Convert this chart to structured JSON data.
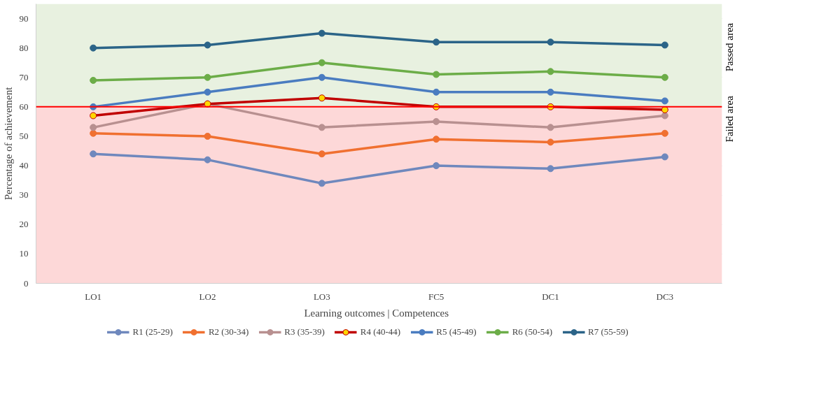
{
  "chart_data": {
    "type": "line",
    "xlabel": "Learning outcomes  |  Competences",
    "ylabel": "Percentage of achievement",
    "categories": [
      "LO1",
      "LO2",
      "LO3",
      "FC5",
      "DC1",
      "DC3"
    ],
    "series": [
      {
        "name": "R1 (25-29)",
        "color": "#6f88bd",
        "values": [
          44,
          42,
          34,
          40,
          39,
          43
        ]
      },
      {
        "name": "R2 (30-34)",
        "color": "#f07030",
        "values": [
          51,
          50,
          44,
          49,
          48,
          51
        ]
      },
      {
        "name": "R3 (35-39)",
        "color": "#b89090",
        "values": [
          53,
          61,
          53,
          55,
          53,
          57
        ]
      },
      {
        "name": "R4 (40-44)",
        "color": "#c00000",
        "values": [
          57,
          61,
          63,
          60,
          60,
          59
        ]
      },
      {
        "name": "R5 (45-49)",
        "color": "#4a7cc0",
        "values": [
          60,
          65,
          70,
          65,
          65,
          62
        ]
      },
      {
        "name": "R6 (50-54)",
        "color": "#6cad48",
        "values": [
          69,
          70,
          75,
          71,
          72,
          70
        ]
      },
      {
        "name": "R7 (55-59)",
        "color": "#2b6488",
        "values": [
          80,
          81,
          85,
          82,
          82,
          81
        ]
      }
    ],
    "ylim": [
      0,
      95
    ],
    "yticks": [
      0,
      10,
      20,
      30,
      40,
      50,
      60,
      70,
      80,
      90
    ],
    "ref_lines": [
      {
        "axis": "y",
        "value": 60,
        "color": "#ff0000"
      }
    ],
    "bands": [
      {
        "axis": "y",
        "from": 60,
        "to": 95,
        "label": "Passed area",
        "color": "#e8f1e0"
      },
      {
        "axis": "y",
        "from": 0,
        "to": 60,
        "label": "Failed area",
        "color": "#fdd8d8"
      }
    ],
    "grid": "y",
    "legend": "bottom",
    "marker": "circle",
    "line_style": "solid"
  }
}
